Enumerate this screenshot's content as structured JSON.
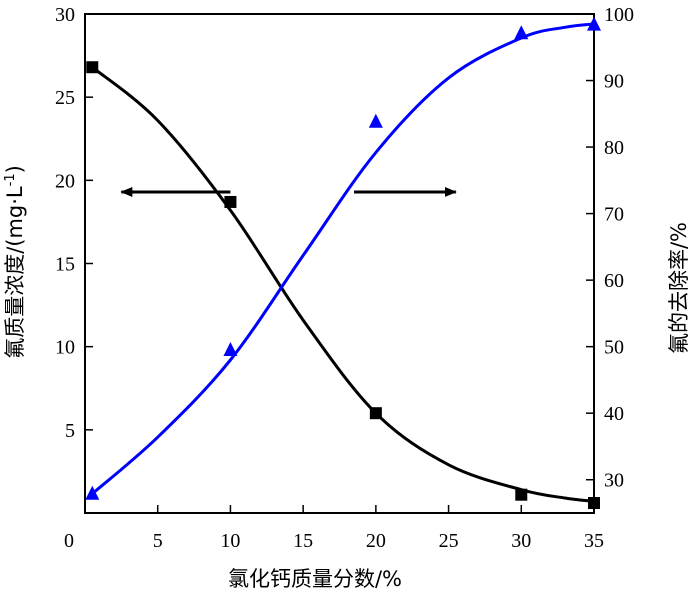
{
  "chart_data": {
    "type": "scatter",
    "title": "",
    "xlabel": "氯化钙质量分数/%",
    "ylabel_left": "氟质量浓度/(mg·L",
    "ylabel_left_sup": "-1",
    "ylabel_left_close": ")",
    "ylabel_right": "氟的去除率/%",
    "xlim": [
      0,
      35
    ],
    "ylim_left": [
      0,
      30
    ],
    "ylim_right": [
      25,
      100
    ],
    "x_ticks": [
      "0",
      "5",
      "10",
      "15",
      "20",
      "25",
      "30",
      "35"
    ],
    "y_left_ticks": [
      "5",
      "10",
      "15",
      "20",
      "25",
      "30"
    ],
    "y_right_ticks": [
      "30",
      "40",
      "50",
      "60",
      "70",
      "80",
      "90",
      "100"
    ],
    "grid": false,
    "series": [
      {
        "axis": "left",
        "marker": "square",
        "color": "#000000",
        "x": [
          0.5,
          10,
          20,
          30,
          35
        ],
        "y": [
          26.8,
          18.7,
          6.0,
          1.1,
          0.6
        ],
        "fit_x": [
          0.5,
          5,
          10,
          15,
          20,
          25,
          30,
          33,
          35
        ],
        "fit_y": [
          26.8,
          23.6,
          18.2,
          11.6,
          6.0,
          2.9,
          1.4,
          0.9,
          0.7
        ]
      },
      {
        "axis": "right",
        "marker": "triangle",
        "color": "#0000ff",
        "x": [
          0.5,
          10,
          20,
          30,
          35
        ],
        "y": [
          27.9,
          49.5,
          83.8,
          97.1,
          98.4
        ],
        "fit_x": [
          0.5,
          5,
          10,
          15,
          20,
          25,
          30,
          33,
          35
        ],
        "fit_y": [
          27.9,
          36.4,
          48.0,
          63.7,
          79.2,
          90.4,
          96.4,
          98.0,
          98.5
        ]
      }
    ],
    "annotations": [
      {
        "direction": "left",
        "x_from": 10,
        "x_to": 2.5,
        "y_left": 19.3
      },
      {
        "direction": "right",
        "x_from": 18.5,
        "x_to": 25.5,
        "y_left": 19.3
      }
    ]
  }
}
